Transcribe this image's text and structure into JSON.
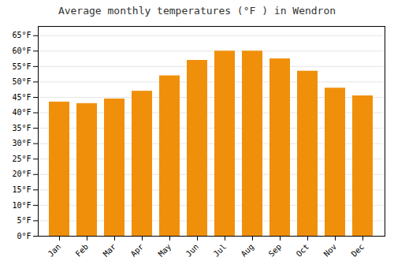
{
  "chart_data": {
    "type": "bar",
    "title": "Average monthly temperatures (°F ) in Wendron",
    "categories": [
      "Jan",
      "Feb",
      "Mar",
      "Apr",
      "May",
      "Jun",
      "Jul",
      "Aug",
      "Sep",
      "Oct",
      "Nov",
      "Dec"
    ],
    "values": [
      43.5,
      43.0,
      44.5,
      47.0,
      52.0,
      57.0,
      60.0,
      60.0,
      57.5,
      53.5,
      48.0,
      45.5
    ],
    "color": "#F0900A",
    "ylim": [
      0,
      68
    ],
    "yticks": [
      {
        "value": 0,
        "label": "0°F"
      },
      {
        "value": 5,
        "label": "5°F"
      },
      {
        "value": 10,
        "label": "10°F"
      },
      {
        "value": 15,
        "label": "15°F"
      },
      {
        "value": 20,
        "label": "20°F"
      },
      {
        "value": 25,
        "label": "25°F"
      },
      {
        "value": 30,
        "label": "30°F"
      },
      {
        "value": 35,
        "label": "35°F"
      },
      {
        "value": 40,
        "label": "40°F"
      },
      {
        "value": 45,
        "label": "45°F"
      },
      {
        "value": 50,
        "label": "50°F"
      },
      {
        "value": 55,
        "label": "55°F"
      },
      {
        "value": 60,
        "label": "60°F"
      },
      {
        "value": 65,
        "label": "65°F"
      }
    ],
    "grid": true
  }
}
